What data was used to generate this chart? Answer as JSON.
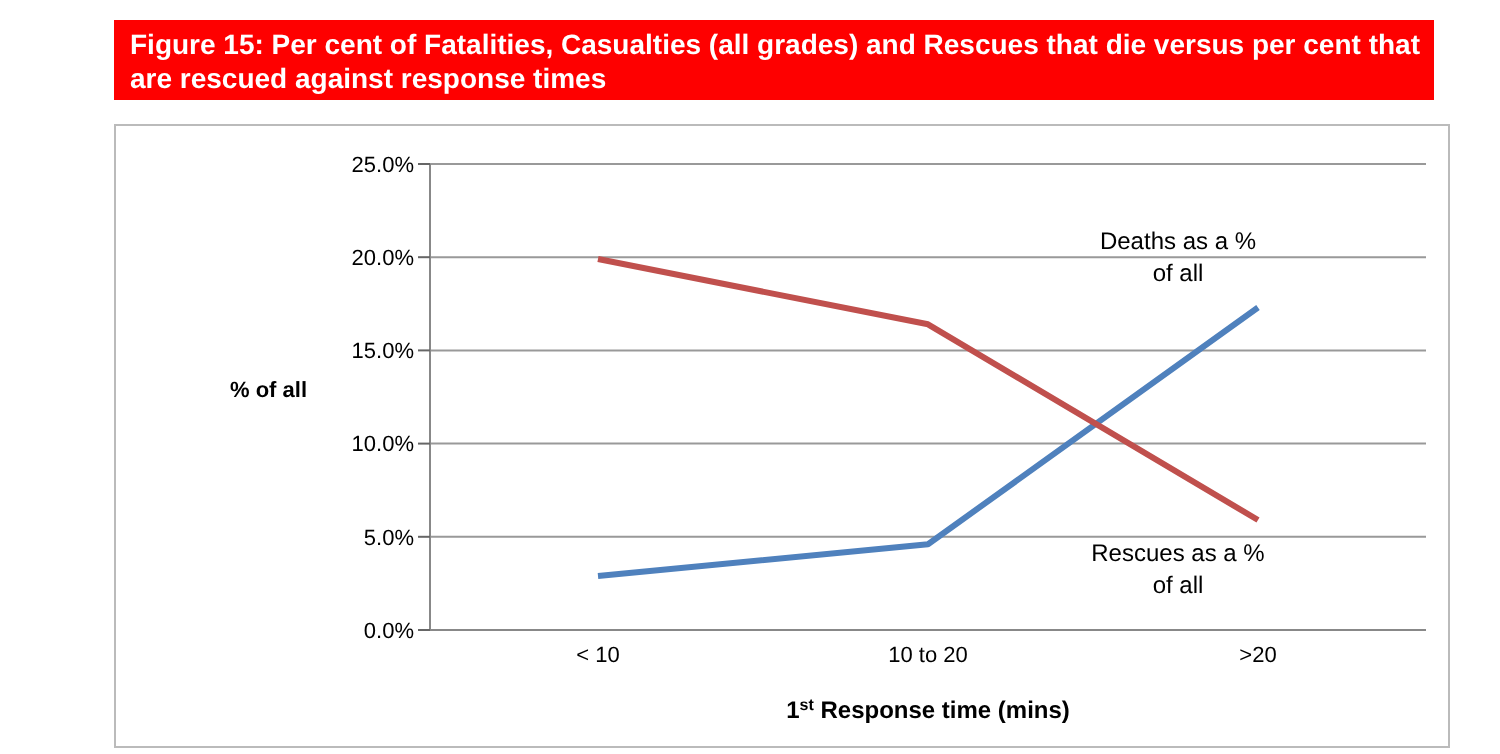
{
  "chart_data": {
    "type": "line",
    "title": "Figure 15: Per cent of Fatalities, Casualties (all grades) and Rescues that die versus per cent  that are rescued against response times",
    "xlabel": "1$^{st}$ Response time (mins)",
    "ylabel": "% of all",
    "categories": [
      "< 10",
      "10 to 20",
      ">20"
    ],
    "series": [
      {
        "name": "Deaths as a % of all",
        "color": "#4f81bd",
        "values": [
          2.9,
          4.6,
          17.3
        ]
      },
      {
        "name": "Rescues as a % of all",
        "color": "#c0504d",
        "values": [
          19.9,
          16.4,
          5.9
        ]
      }
    ],
    "ylim": [
      0,
      25
    ],
    "yticks": [
      {
        "value": 0,
        "label": "0.0%"
      },
      {
        "value": 5,
        "label": "5.0%"
      },
      {
        "value": 10,
        "label": "10.0%"
      },
      {
        "value": 15,
        "label": "15.0%"
      },
      {
        "value": 20,
        "label": "20.0%"
      },
      {
        "value": 25,
        "label": "25.0%"
      }
    ],
    "grid": "y",
    "legend": false,
    "marker": "none",
    "line_style": "solid"
  }
}
